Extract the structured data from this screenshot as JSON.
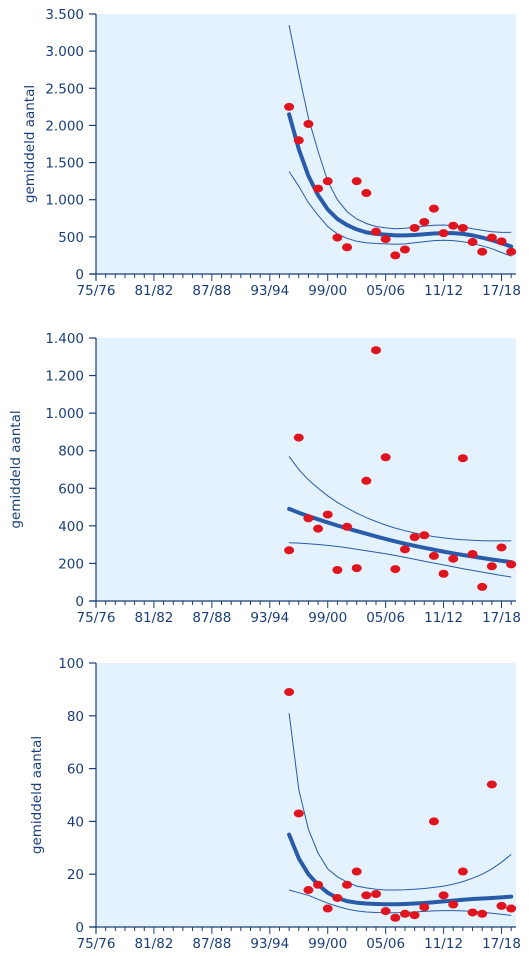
{
  "colors": {
    "plot_bg": "#e3f2fc",
    "axis": "#1a3f78",
    "trend": "#2a5ba8",
    "band": "#2a5ba8",
    "points": "#e0141e"
  },
  "chart_data": [
    {
      "type": "scatter",
      "ylabel": "gemiddeld aantal",
      "ylim": [
        0,
        3500
      ],
      "yticks": [
        0,
        500,
        1000,
        1500,
        2000,
        2500,
        3000,
        3500
      ],
      "ytick_labels": [
        "0",
        "500",
        "1.000",
        "1.500",
        "2.000",
        "2.500",
        "3.000",
        "3.500"
      ],
      "xlim": [
        1975,
        2018.5
      ],
      "xticks": [
        1975,
        1981,
        1987,
        1993,
        1999,
        2005,
        2011,
        2017
      ],
      "xtick_labels": [
        "75/76",
        "81/82",
        "87/88",
        "93/94",
        "99/00",
        "05/06",
        "11/12",
        "17/18"
      ],
      "points": [
        [
          1995,
          2250
        ],
        [
          1996,
          1800
        ],
        [
          1997,
          2020
        ],
        [
          1998,
          1150
        ],
        [
          1999,
          1250
        ],
        [
          2000,
          490
        ],
        [
          2001,
          360
        ],
        [
          2002,
          1250
        ],
        [
          2003,
          1090
        ],
        [
          2004,
          570
        ],
        [
          2005,
          470
        ],
        [
          2006,
          250
        ],
        [
          2007,
          330
        ],
        [
          2008,
          620
        ],
        [
          2009,
          700
        ],
        [
          2010,
          880
        ],
        [
          2011,
          550
        ],
        [
          2012,
          650
        ],
        [
          2013,
          620
        ],
        [
          2014,
          430
        ],
        [
          2015,
          300
        ],
        [
          2016,
          490
        ],
        [
          2017,
          440
        ],
        [
          2018,
          300
        ]
      ],
      "trend": [
        [
          1995,
          2150
        ],
        [
          1996,
          1680
        ],
        [
          1997,
          1320
        ],
        [
          1998,
          1060
        ],
        [
          1999,
          870
        ],
        [
          2000,
          740
        ],
        [
          2001,
          660
        ],
        [
          2002,
          600
        ],
        [
          2003,
          560
        ],
        [
          2004,
          540
        ],
        [
          2005,
          530
        ],
        [
          2006,
          520
        ],
        [
          2007,
          520
        ],
        [
          2008,
          525
        ],
        [
          2009,
          535
        ],
        [
          2010,
          545
        ],
        [
          2011,
          550
        ],
        [
          2012,
          550
        ],
        [
          2013,
          540
        ],
        [
          2014,
          520
        ],
        [
          2015,
          490
        ],
        [
          2016,
          455
        ],
        [
          2017,
          415
        ],
        [
          2018,
          370
        ]
      ],
      "upper": [
        [
          1995,
          3350
        ],
        [
          1996,
          2700
        ],
        [
          1997,
          2100
        ],
        [
          1998,
          1650
        ],
        [
          1999,
          1250
        ],
        [
          2000,
          1000
        ],
        [
          2001,
          840
        ],
        [
          2002,
          740
        ],
        [
          2003,
          680
        ],
        [
          2004,
          640
        ],
        [
          2005,
          620
        ],
        [
          2006,
          610
        ],
        [
          2007,
          615
        ],
        [
          2008,
          630
        ],
        [
          2009,
          645
        ],
        [
          2010,
          655
        ],
        [
          2011,
          660
        ],
        [
          2012,
          650
        ],
        [
          2013,
          635
        ],
        [
          2014,
          610
        ],
        [
          2015,
          590
        ],
        [
          2016,
          570
        ],
        [
          2017,
          560
        ],
        [
          2018,
          560
        ]
      ],
      "lower": [
        [
          1995,
          1380
        ],
        [
          1996,
          1180
        ],
        [
          1997,
          960
        ],
        [
          1998,
          790
        ],
        [
          1999,
          640
        ],
        [
          2000,
          540
        ],
        [
          2001,
          480
        ],
        [
          2002,
          440
        ],
        [
          2003,
          420
        ],
        [
          2004,
          410
        ],
        [
          2005,
          405
        ],
        [
          2006,
          400
        ],
        [
          2007,
          405
        ],
        [
          2008,
          420
        ],
        [
          2009,
          435
        ],
        [
          2010,
          450
        ],
        [
          2011,
          455
        ],
        [
          2012,
          450
        ],
        [
          2013,
          435
        ],
        [
          2014,
          410
        ],
        [
          2015,
          380
        ],
        [
          2016,
          340
        ],
        [
          2017,
          290
        ],
        [
          2018,
          240
        ]
      ]
    },
    {
      "type": "scatter",
      "ylabel": "gemiddeld aantal",
      "ylim": [
        0,
        1400
      ],
      "yticks": [
        0,
        200,
        400,
        600,
        800,
        1000,
        1200,
        1400
      ],
      "ytick_labels": [
        "0",
        "200",
        "400",
        "600",
        "800",
        "1.000",
        "1.200",
        "1.400"
      ],
      "xlim": [
        1975,
        2018.5
      ],
      "xticks": [
        1975,
        1981,
        1987,
        1993,
        1999,
        2005,
        2011,
        2017
      ],
      "xtick_labels": [
        "75/76",
        "81/82",
        "87/88",
        "93/94",
        "99/00",
        "05/06",
        "11/12",
        "17/18"
      ],
      "points": [
        [
          1995,
          270
        ],
        [
          1996,
          870
        ],
        [
          1997,
          440
        ],
        [
          1998,
          385
        ],
        [
          1999,
          460
        ],
        [
          2000,
          165
        ],
        [
          2001,
          395
        ],
        [
          2002,
          175
        ],
        [
          2003,
          640
        ],
        [
          2004,
          1335
        ],
        [
          2005,
          765
        ],
        [
          2006,
          170
        ],
        [
          2007,
          275
        ],
        [
          2008,
          340
        ],
        [
          2009,
          350
        ],
        [
          2010,
          240
        ],
        [
          2011,
          145
        ],
        [
          2012,
          225
        ],
        [
          2013,
          760
        ],
        [
          2014,
          250
        ],
        [
          2015,
          75
        ],
        [
          2016,
          185
        ],
        [
          2017,
          285
        ],
        [
          2018,
          195
        ]
      ],
      "trend": [
        [
          1995,
          490
        ],
        [
          1996,
          470
        ],
        [
          1997,
          452
        ],
        [
          1998,
          435
        ],
        [
          1999,
          418
        ],
        [
          2000,
          402
        ],
        [
          2001,
          387
        ],
        [
          2002,
          372
        ],
        [
          2003,
          358
        ],
        [
          2004,
          344
        ],
        [
          2005,
          330
        ],
        [
          2006,
          317
        ],
        [
          2007,
          305
        ],
        [
          2008,
          294
        ],
        [
          2009,
          283
        ],
        [
          2010,
          273
        ],
        [
          2011,
          263
        ],
        [
          2012,
          254
        ],
        [
          2013,
          245
        ],
        [
          2014,
          237
        ],
        [
          2015,
          229
        ],
        [
          2016,
          221
        ],
        [
          2017,
          214
        ],
        [
          2018,
          207
        ]
      ],
      "upper": [
        [
          1995,
          770
        ],
        [
          1996,
          700
        ],
        [
          1997,
          645
        ],
        [
          1998,
          600
        ],
        [
          1999,
          560
        ],
        [
          2000,
          525
        ],
        [
          2001,
          495
        ],
        [
          2002,
          468
        ],
        [
          2003,
          444
        ],
        [
          2004,
          423
        ],
        [
          2005,
          404
        ],
        [
          2006,
          388
        ],
        [
          2007,
          374
        ],
        [
          2008,
          362
        ],
        [
          2009,
          352
        ],
        [
          2010,
          343
        ],
        [
          2011,
          336
        ],
        [
          2012,
          330
        ],
        [
          2013,
          326
        ],
        [
          2014,
          323
        ],
        [
          2015,
          321
        ],
        [
          2016,
          320
        ],
        [
          2017,
          320
        ],
        [
          2018,
          320
        ]
      ],
      "lower": [
        [
          1995,
          310
        ],
        [
          1996,
          308
        ],
        [
          1997,
          305
        ],
        [
          1998,
          301
        ],
        [
          1999,
          296
        ],
        [
          2000,
          290
        ],
        [
          2001,
          283
        ],
        [
          2002,
          276
        ],
        [
          2003,
          268
        ],
        [
          2004,
          260
        ],
        [
          2005,
          251
        ],
        [
          2006,
          242
        ],
        [
          2007,
          232
        ],
        [
          2008,
          222
        ],
        [
          2009,
          212
        ],
        [
          2010,
          202
        ],
        [
          2011,
          192
        ],
        [
          2012,
          182
        ],
        [
          2013,
          172
        ],
        [
          2014,
          163
        ],
        [
          2015,
          154
        ],
        [
          2016,
          145
        ],
        [
          2017,
          136
        ],
        [
          2018,
          128
        ]
      ]
    },
    {
      "type": "scatter",
      "ylabel": "gemiddeld aantal",
      "ylim": [
        0,
        100
      ],
      "yticks": [
        0,
        20,
        40,
        60,
        80,
        100
      ],
      "ytick_labels": [
        "0",
        "20",
        "40",
        "60",
        "80",
        "100"
      ],
      "xlim": [
        1975,
        2018.5
      ],
      "xticks": [
        1975,
        1981,
        1987,
        1993,
        1999,
        2005,
        2011,
        2017
      ],
      "xtick_labels": [
        "75/76",
        "81/82",
        "87/88",
        "93/94",
        "99/00",
        "05/06",
        "11/12",
        "17/18"
      ],
      "points": [
        [
          1995,
          89
        ],
        [
          1996,
          43
        ],
        [
          1997,
          14
        ],
        [
          1998,
          16
        ],
        [
          1999,
          7
        ],
        [
          2000,
          11
        ],
        [
          2001,
          16
        ],
        [
          2002,
          21
        ],
        [
          2003,
          12
        ],
        [
          2004,
          12.5
        ],
        [
          2005,
          6
        ],
        [
          2006,
          3.5
        ],
        [
          2007,
          5
        ],
        [
          2008,
          4.5
        ],
        [
          2009,
          7.5
        ],
        [
          2010,
          40
        ],
        [
          2011,
          12
        ],
        [
          2012,
          8.5
        ],
        [
          2013,
          21
        ],
        [
          2014,
          5.5
        ],
        [
          2015,
          5
        ],
        [
          2016,
          54
        ],
        [
          2017,
          8
        ],
        [
          2018,
          7
        ]
      ],
      "trend": [
        [
          1995,
          35
        ],
        [
          1996,
          26
        ],
        [
          1997,
          20
        ],
        [
          1998,
          16
        ],
        [
          1999,
          13
        ],
        [
          2000,
          11
        ],
        [
          2001,
          9.8
        ],
        [
          2002,
          9.2
        ],
        [
          2003,
          8.9
        ],
        [
          2004,
          8.7
        ],
        [
          2005,
          8.6
        ],
        [
          2006,
          8.6
        ],
        [
          2007,
          8.7
        ],
        [
          2008,
          8.9
        ],
        [
          2009,
          9.1
        ],
        [
          2010,
          9.4
        ],
        [
          2011,
          9.7
        ],
        [
          2012,
          10
        ],
        [
          2013,
          10.3
        ],
        [
          2014,
          10.6
        ],
        [
          2015,
          10.8
        ],
        [
          2016,
          11
        ],
        [
          2017,
          11.2
        ],
        [
          2018,
          11.5
        ]
      ],
      "upper": [
        [
          1995,
          81
        ],
        [
          1996,
          52
        ],
        [
          1997,
          37
        ],
        [
          1998,
          28
        ],
        [
          1999,
          22
        ],
        [
          2000,
          19
        ],
        [
          2001,
          17
        ],
        [
          2002,
          15.5
        ],
        [
          2003,
          14.8
        ],
        [
          2004,
          14.3
        ],
        [
          2005,
          14
        ],
        [
          2006,
          14
        ],
        [
          2007,
          14.1
        ],
        [
          2008,
          14.3
        ],
        [
          2009,
          14.6
        ],
        [
          2010,
          15
        ],
        [
          2011,
          15.5
        ],
        [
          2012,
          16.2
        ],
        [
          2013,
          17.2
        ],
        [
          2014,
          18.5
        ],
        [
          2015,
          20
        ],
        [
          2016,
          22
        ],
        [
          2017,
          24.5
        ],
        [
          2018,
          27.5
        ]
      ],
      "lower": [
        [
          1995,
          14
        ],
        [
          1996,
          13
        ],
        [
          1997,
          12
        ],
        [
          1998,
          10.5
        ],
        [
          1999,
          9
        ],
        [
          2000,
          7.8
        ],
        [
          2001,
          6.8
        ],
        [
          2002,
          6.1
        ],
        [
          2003,
          5.7
        ],
        [
          2004,
          5.5
        ],
        [
          2005,
          5.4
        ],
        [
          2006,
          5.4
        ],
        [
          2007,
          5.5
        ],
        [
          2008,
          5.7
        ],
        [
          2009,
          5.9
        ],
        [
          2010,
          6.1
        ],
        [
          2011,
          6.2
        ],
        [
          2012,
          6.2
        ],
        [
          2013,
          6.1
        ],
        [
          2014,
          5.9
        ],
        [
          2015,
          5.6
        ],
        [
          2016,
          5.2
        ],
        [
          2017,
          4.8
        ],
        [
          2018,
          4.4
        ]
      ]
    }
  ]
}
